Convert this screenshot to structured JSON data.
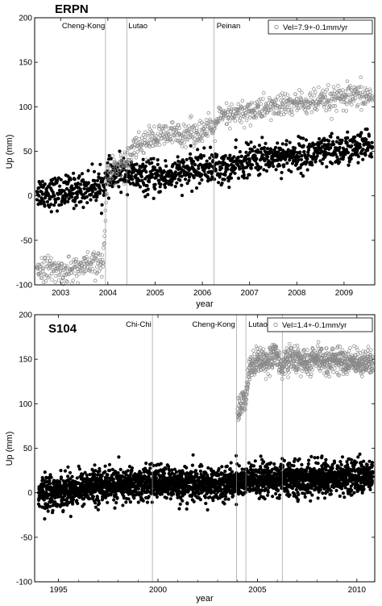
{
  "chart_data": [
    {
      "type": "scatter",
      "title": "ERPN",
      "xlabel": "year",
      "ylabel": "Up (mm)",
      "xlim": [
        2002.45,
        2009.65
      ],
      "ylim": [
        -100,
        200
      ],
      "x_ticks": [
        2003,
        2004,
        2005,
        2006,
        2007,
        2008,
        2009
      ],
      "y_ticks": [
        -100,
        -50,
        0,
        50,
        100,
        150,
        200
      ],
      "legend": {
        "label": "Vel=7.9+-0.1mm/yr",
        "position": "top-right",
        "marker": "open circle"
      },
      "events": [
        {
          "label": "Cheng-Kong",
          "x": 2003.95
        },
        {
          "label": "Lutao",
          "x": 2004.4
        },
        {
          "label": "Peinan",
          "x": 2006.25
        }
      ],
      "series": [
        {
          "marker": "filled circle",
          "color": "#000000",
          "x": [
            2002.5,
            2003.0,
            2003.5,
            2003.9,
            2004.0,
            2004.4,
            2004.5,
            2005.0,
            2005.5,
            2006.0,
            2006.25,
            2006.5,
            2007.0,
            2007.5,
            2008.0,
            2008.5,
            2009.0,
            2009.6
          ],
          "y": [
            5,
            3,
            8,
            12,
            20,
            28,
            22,
            20,
            25,
            32,
            32,
            30,
            40,
            45,
            45,
            48,
            52,
            55
          ]
        },
        {
          "marker": "open circle",
          "color": "#888888",
          "x": [
            2002.5,
            2003.0,
            2003.5,
            2003.9,
            2004.0,
            2004.4,
            2004.5,
            2005.0,
            2005.5,
            2006.0,
            2006.25,
            2006.3,
            2007.0,
            2007.5,
            2008.0,
            2008.5,
            2009.0,
            2009.6
          ],
          "y": [
            -80,
            -85,
            -80,
            -75,
            28,
            38,
            55,
            65,
            70,
            73,
            75,
            86,
            95,
            100,
            104,
            105,
            110,
            112
          ]
        }
      ]
    },
    {
      "type": "scatter",
      "title": "S104",
      "xlabel": "year",
      "ylabel": "Up (mm)",
      "xlim": [
        1993.8,
        2010.9
      ],
      "ylim": [
        -100,
        200
      ],
      "x_ticks": [
        1995,
        2000,
        2005,
        2010
      ],
      "x_minor_ticks": [
        1996,
        1997,
        1998,
        1999,
        2001,
        2002,
        2003,
        2004,
        2006,
        2007,
        2008,
        2009
      ],
      "y_ticks": [
        -100,
        -50,
        0,
        50,
        100,
        150,
        200
      ],
      "legend": {
        "label": "Vel=1.4+-0.1mm/yr",
        "position": "top-right",
        "marker": "open circle"
      },
      "events": [
        {
          "label": "Chi-Chi",
          "x": 1999.72
        },
        {
          "label": "Cheng-Kong",
          "x": 2003.95
        },
        {
          "label": "Lutao",
          "x": 2004.42
        },
        {
          "label": "",
          "x": 2006.25
        }
      ],
      "series": [
        {
          "marker": "filled circle",
          "color": "#000000",
          "x": [
            1994.0,
            1995.0,
            1996.0,
            1997.0,
            1998.0,
            1999.0,
            2000.0,
            2001.0,
            2002.0,
            2003.0,
            2004.0,
            2005.0,
            2006.0,
            2007.0,
            2008.0,
            2009.0,
            2010.0,
            2010.8
          ],
          "y": [
            0,
            2,
            5,
            8,
            8,
            10,
            12,
            10,
            8,
            10,
            12,
            14,
            15,
            15,
            16,
            18,
            18,
            18
          ]
        },
        {
          "marker": "open circle",
          "color": "#888888",
          "x": [
            2004.0,
            2004.2,
            2004.42,
            2004.6,
            2005.0,
            2005.5,
            2006.0,
            2006.25,
            2006.5,
            2007.0,
            2007.5,
            2008.0,
            2008.5,
            2009.0,
            2009.5,
            2010.0,
            2010.8
          ],
          "y": [
            90,
            100,
            105,
            140,
            150,
            148,
            155,
            140,
            150,
            150,
            145,
            150,
            148,
            150,
            145,
            148,
            145
          ]
        }
      ]
    }
  ]
}
